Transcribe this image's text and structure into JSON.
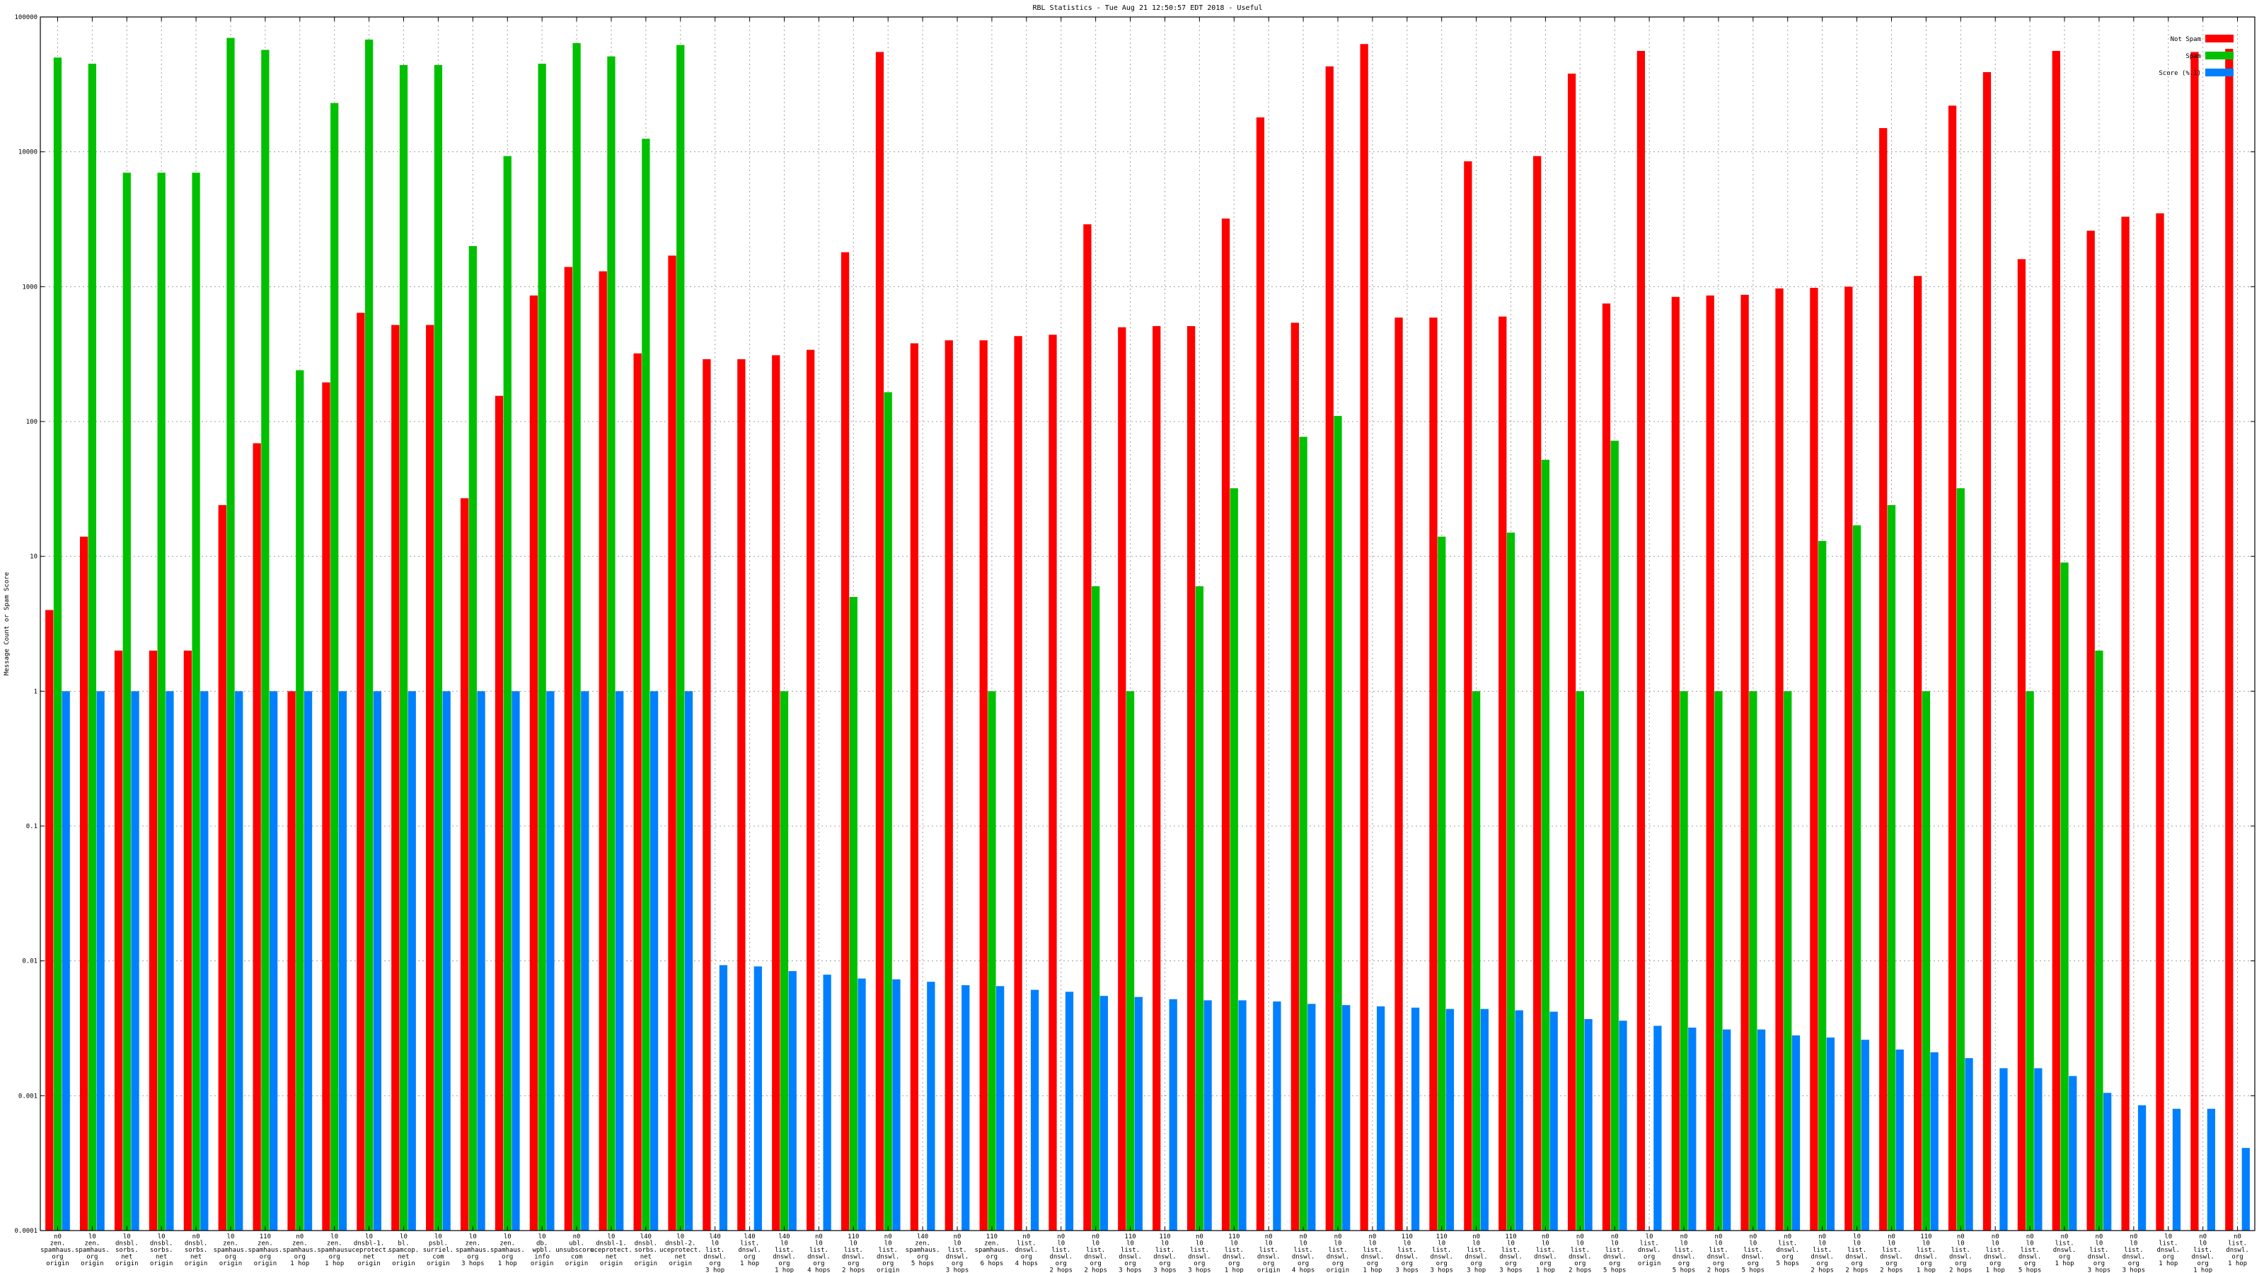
{
  "chart_data": {
    "type": "bar",
    "title": "RBL Statistics - Tue Aug 21 12:50:57 EDT 2018 - Useful",
    "xlabel": "",
    "ylabel": "Message Count or Spam Score",
    "yscale": "log",
    "ylim": [
      0.0001,
      100000
    ],
    "yticks": [
      "0.0001",
      "0.001",
      "0.01",
      "0.1",
      "1",
      "10",
      "100",
      "1000",
      "10000",
      "100000"
    ],
    "grid": true,
    "legend_position": "top-right",
    "colors": {
      "not_spam": "#ff0000",
      "spam": "#00c000",
      "score": "#0080ff"
    },
    "categories": [
      "n0 zen. spamhaus. org origin",
      "l0 zen. spamhaus. org origin",
      "l0 dnsbl. sorbs. net origin",
      "l0 dnsbl. sorbs. net origin",
      "n0 dnsbl. sorbs. net origin",
      "l0 zen. spamhaus. org origin",
      "110 zen. spamhaus. org origin",
      "n0 zen. spamhaus. org 1 hop",
      "l0 zen. spamhaus. org 1 hop",
      "l0 dnsbl-1. uceprotect. net origin",
      "l0 bl. spamcop. net origin",
      "l0 psbl. surriel. com origin",
      "l0 zen. spamhaus. org 3 hops",
      "l0 zen. spamhaus. org 1 hop",
      "l0 db. wpbl. info origin",
      "n0 ubl. unsubscore. com origin",
      "l0 dnsbl-1. uceprotect. net origin",
      "l40 dnsbl. sorbs. net origin",
      "l0 dnsbl-2. uceprotect. net origin",
      "l40 l0 list. dnswl. org 3 hop",
      "l40 list. dnswl. org 1 hop",
      "l40 l0 list. dnswl. org 1 hop",
      "n0 l0 list. dnswl. org 4 hops",
      "110 l0 list. dnswl. org 2 hops",
      "n0 l0 list. dnswl. org origin",
      "l40 zen. spamhaus. org 5 hops",
      "n0 l0 list. dnswl. org 3 hops",
      "110 zen. spamhaus. org 6 hops",
      "n0 list. dnswl. org 4 hops",
      "n0 l0 list. dnswl. org 2 hops",
      "n0 l0 list. dnswl. org 2 hops",
      "110 l0 list. dnswl. org 3 hops",
      "110 l0 list. dnswl. org 3 hops",
      "n0 l0 list. dnswl. org 3 hops",
      "110 l0 list. dnswl. org 1 hop",
      "n0 l0 list. dnswl. org origin",
      "n0 l0 list. dnswl. org 4 hops",
      "n0 l0 list. dnswl. org origin",
      "n0 l0 list. dnswl. org 1 hop",
      "110 l0 list. dnswl. org 3 hops",
      "110 l0 list. dnswl. org 3 hops",
      "n0 l0 list. dnswl. org 3 hop",
      "110 l0 list. dnswl. org 3 hops",
      "n0 l0 list. dnswl. org 1 hop",
      "n0 l0 list. dnswl. org 2 hops",
      "n0 l0 list. dnswl. org 5 hops",
      "l0 list. dnswl. org origin",
      "n0 l0 list. dnswl. org 5 hops",
      "n0 l0 list. dnswl. org 2 hops",
      "n0 l0 list. dnswl. org 5 hops",
      "n0 list. dnswl. org 5 hops",
      "n0 l0 list. dnswl. org 2 hops",
      "l0 l0 list. dnswl. org 2 hops",
      "n0 l0 list. dnswl. org 2 hops",
      "110 l0 list. dnswl. org 1 hop",
      "n0 l0 list. dnswl. org 2 hops",
      "n0 l0 list. dnswl. org 1 hop",
      "n0 l0 list. dnswl. org 5 hops",
      "n0 list. dnswl. org 1 hop",
      "n0 l0 list. dnswl. org 3 hops",
      "n0 l0 list. dnswl. org 3 hops",
      "l0 list. dnswl. org 1 hop",
      "n0 l0 list. dnswl. org 1 hop",
      "n0 list. dnswl. org 1 hop"
    ],
    "series": [
      {
        "name": "Not Spam",
        "values": [
          4,
          14,
          2,
          2,
          2,
          24,
          69,
          1,
          195,
          640,
          520,
          520,
          27,
          155,
          860,
          1400,
          1300,
          320,
          1700,
          290,
          290,
          310,
          340,
          1800,
          55000,
          380,
          400,
          400,
          430,
          440,
          2900,
          500,
          510,
          510,
          3200,
          18000,
          540,
          43000,
          63000,
          590,
          590,
          8500,
          600,
          9300,
          38000,
          750,
          56000,
          840,
          860,
          870,
          970,
          980,
          1000,
          15000,
          1200,
          22000,
          39000,
          1600,
          56000,
          2600,
          3300,
          3500,
          55000,
          58000
        ]
      },
      {
        "name": "Spam",
        "values": [
          50000,
          45000,
          7000,
          7000,
          7000,
          70000,
          57000,
          240,
          23000,
          68000,
          44000,
          44000,
          2000,
          9300,
          45000,
          64000,
          51000,
          12500,
          62000,
          null,
          null,
          1,
          null,
          5,
          165,
          null,
          null,
          1,
          null,
          null,
          6,
          1,
          null,
          6,
          32,
          null,
          77,
          110,
          null,
          null,
          14,
          1,
          15,
          52,
          1,
          72,
          null,
          1,
          1,
          1,
          1,
          13,
          17,
          24,
          1,
          32,
          null,
          1,
          9,
          2,
          null,
          null,
          null,
          null
        ]
      },
      {
        "name": "Score (%.1)",
        "values": [
          1,
          1,
          1,
          1,
          1,
          1,
          1,
          1,
          1,
          1,
          1,
          1,
          1,
          1,
          1,
          1,
          1,
          1,
          1,
          0.0093,
          0.0091,
          0.0084,
          0.0079,
          0.0074,
          0.0073,
          0.007,
          0.0066,
          0.0065,
          0.0061,
          0.0059,
          0.0055,
          0.0054,
          0.0052,
          0.0051,
          0.0051,
          0.005,
          0.0048,
          0.0047,
          0.0046,
          0.0045,
          0.0044,
          0.0044,
          0.0043,
          0.0042,
          0.0037,
          0.0036,
          0.0033,
          0.0032,
          0.0031,
          0.0031,
          0.0028,
          0.0027,
          0.0026,
          0.0022,
          0.0021,
          0.0019,
          0.0016,
          0.0016,
          0.0014,
          0.00105,
          0.00085,
          0.0008,
          0.0008,
          0.00041
        ]
      }
    ]
  }
}
